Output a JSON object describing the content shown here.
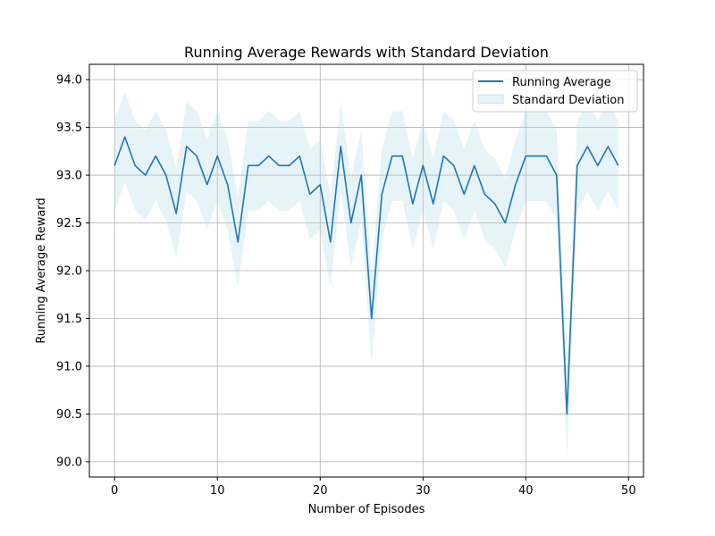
{
  "chart_data": {
    "type": "line",
    "title": "Running Average Rewards with Standard Deviation",
    "xlabel": "Number of Episodes",
    "ylabel": "Running Average Reward",
    "xlim": [
      -2.45,
      51.45
    ],
    "ylim": [
      89.84,
      94.16
    ],
    "xticks": [
      0,
      10,
      20,
      30,
      40,
      50
    ],
    "yticks": [
      90.0,
      90.5,
      91.0,
      91.5,
      92.0,
      92.5,
      93.0,
      93.5,
      94.0
    ],
    "ytick_labels": [
      "90.0",
      "90.5",
      "91.0",
      "91.5",
      "92.0",
      "92.5",
      "93.0",
      "93.5",
      "94.0"
    ],
    "grid": true,
    "legend_position": "top-right",
    "colors": {
      "line": "#1f77b4",
      "band": "#add8e6"
    },
    "x": [
      0,
      1,
      2,
      3,
      4,
      5,
      6,
      7,
      8,
      9,
      10,
      11,
      12,
      13,
      14,
      15,
      16,
      17,
      18,
      19,
      20,
      21,
      22,
      23,
      24,
      25,
      26,
      27,
      28,
      29,
      30,
      31,
      32,
      33,
      34,
      35,
      36,
      37,
      38,
      39,
      40,
      41,
      42,
      43,
      44,
      45,
      46,
      47,
      48,
      49
    ],
    "series": [
      {
        "name": "Running Average",
        "role": "line",
        "values": [
          93.1,
          93.4,
          93.1,
          93.0,
          93.2,
          93.0,
          92.6,
          93.3,
          93.2,
          92.9,
          93.2,
          92.9,
          92.3,
          93.1,
          93.1,
          93.2,
          93.1,
          93.1,
          93.2,
          92.8,
          92.9,
          92.3,
          93.3,
          92.5,
          93.0,
          91.5,
          92.8,
          93.2,
          93.2,
          92.7,
          93.1,
          92.7,
          93.2,
          93.1,
          92.8,
          93.1,
          92.8,
          92.7,
          92.5,
          92.9,
          93.2,
          93.2,
          93.2,
          93.0,
          90.5,
          93.1,
          93.3,
          93.1,
          93.3,
          93.1
        ]
      },
      {
        "name": "Standard Deviation",
        "role": "band",
        "values": [
          0.47,
          0.47,
          0.47,
          0.47,
          0.47,
          0.47,
          0.47,
          0.47,
          0.47,
          0.47,
          0.47,
          0.47,
          0.47,
          0.47,
          0.47,
          0.47,
          0.47,
          0.47,
          0.47,
          0.47,
          0.47,
          0.47,
          0.47,
          0.47,
          0.47,
          0.47,
          0.47,
          0.47,
          0.47,
          0.47,
          0.47,
          0.47,
          0.47,
          0.47,
          0.47,
          0.47,
          0.47,
          0.47,
          0.47,
          0.47,
          0.47,
          0.47,
          0.47,
          0.47,
          0.47,
          0.47,
          0.47,
          0.47,
          0.47,
          0.47
        ]
      }
    ]
  }
}
